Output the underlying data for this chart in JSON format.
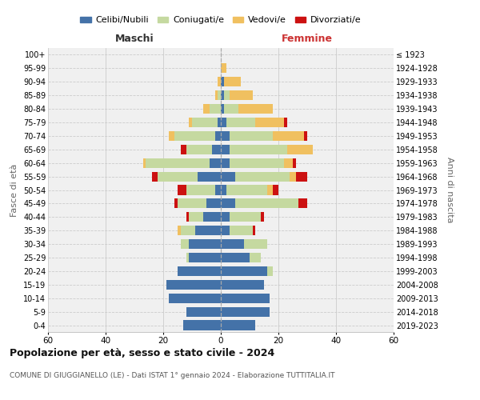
{
  "age_groups": [
    "0-4",
    "5-9",
    "10-14",
    "15-19",
    "20-24",
    "25-29",
    "30-34",
    "35-39",
    "40-44",
    "45-49",
    "50-54",
    "55-59",
    "60-64",
    "65-69",
    "70-74",
    "75-79",
    "80-84",
    "85-89",
    "90-94",
    "95-99",
    "100+"
  ],
  "birth_years": [
    "2019-2023",
    "2014-2018",
    "2009-2013",
    "2004-2008",
    "1999-2003",
    "1994-1998",
    "1989-1993",
    "1984-1988",
    "1979-1983",
    "1974-1978",
    "1969-1973",
    "1964-1968",
    "1959-1963",
    "1954-1958",
    "1949-1953",
    "1944-1948",
    "1939-1943",
    "1934-1938",
    "1929-1933",
    "1924-1928",
    "≤ 1923"
  ],
  "male": {
    "celibi": [
      13,
      12,
      18,
      19,
      15,
      11,
      11,
      9,
      6,
      5,
      2,
      8,
      4,
      3,
      2,
      1,
      0,
      0,
      0,
      0,
      0
    ],
    "coniugati": [
      0,
      0,
      0,
      0,
      0,
      1,
      3,
      5,
      5,
      10,
      10,
      14,
      22,
      9,
      14,
      9,
      4,
      1,
      0,
      0,
      0
    ],
    "vedovi": [
      0,
      0,
      0,
      0,
      0,
      0,
      0,
      1,
      0,
      0,
      0,
      0,
      1,
      0,
      2,
      1,
      2,
      1,
      1,
      0,
      0
    ],
    "divorziati": [
      0,
      0,
      0,
      0,
      0,
      0,
      0,
      0,
      1,
      1,
      3,
      2,
      0,
      2,
      0,
      0,
      0,
      0,
      0,
      0,
      0
    ]
  },
  "female": {
    "nubili": [
      12,
      17,
      17,
      15,
      16,
      10,
      8,
      3,
      3,
      5,
      2,
      5,
      3,
      3,
      3,
      2,
      1,
      1,
      1,
      0,
      0
    ],
    "coniugate": [
      0,
      0,
      0,
      0,
      2,
      4,
      8,
      8,
      11,
      22,
      14,
      19,
      19,
      20,
      15,
      10,
      5,
      2,
      0,
      0,
      0
    ],
    "vedove": [
      0,
      0,
      0,
      0,
      0,
      0,
      0,
      0,
      0,
      0,
      2,
      2,
      3,
      9,
      11,
      10,
      12,
      8,
      6,
      2,
      0
    ],
    "divorziate": [
      0,
      0,
      0,
      0,
      0,
      0,
      0,
      1,
      1,
      3,
      2,
      4,
      1,
      0,
      1,
      1,
      0,
      0,
      0,
      0,
      0
    ]
  },
  "colors": {
    "celibi": "#4472a8",
    "coniugati": "#c5d9a0",
    "vedovi": "#f0c060",
    "divorziati": "#cc1111"
  },
  "xlim": 60,
  "title": "Popolazione per età, sesso e stato civile - 2024",
  "subtitle": "COMUNE DI GIUGGIANELLO (LE) - Dati ISTAT 1° gennaio 2024 - Elaborazione TUTTITALIA.IT",
  "xlabel_left": "Maschi",
  "xlabel_right": "Femmine",
  "ylabel_left": "Fasce di età",
  "ylabel_right": "Anni di nascita",
  "legend_labels": [
    "Celibi/Nubili",
    "Coniugati/e",
    "Vedovi/e",
    "Divorziati/e"
  ],
  "bg_color": "#ffffff",
  "plot_bg_color": "#f0f0f0",
  "grid_color": "#cccccc"
}
